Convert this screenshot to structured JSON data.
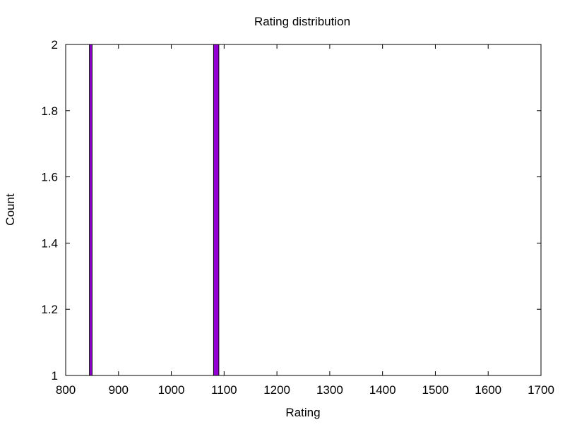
{
  "chart_data": {
    "type": "bar",
    "title": "Rating distribution",
    "xlabel": "Rating",
    "ylabel": "Count",
    "xlim": [
      800,
      1700
    ],
    "ylim": [
      1,
      2
    ],
    "xticks": [
      "800",
      "900",
      "1000",
      "1100",
      "1200",
      "1300",
      "1400",
      "1500",
      "1600",
      "1700"
    ],
    "yticks": [
      "1",
      "1.2",
      "1.4",
      "1.6",
      "1.8",
      "2"
    ],
    "grid": false,
    "bar_color": "#9400D3",
    "bars": [
      {
        "x0": 845,
        "x1": 850,
        "value": 2
      },
      {
        "x0": 1080,
        "x1": 1090,
        "value": 2
      }
    ]
  }
}
